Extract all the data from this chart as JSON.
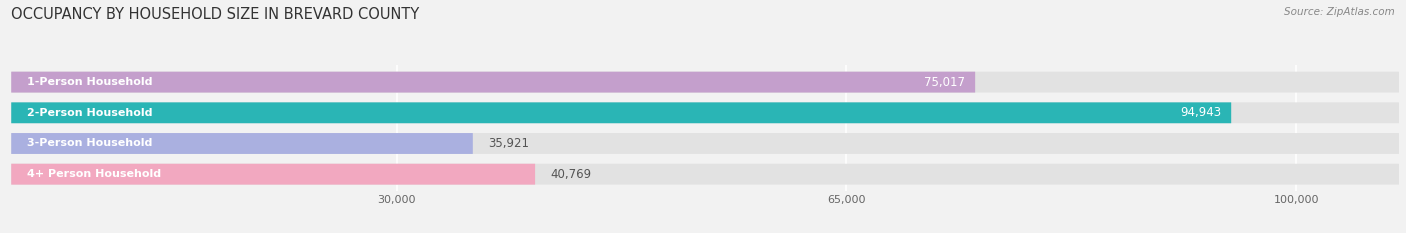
{
  "title": "OCCUPANCY BY HOUSEHOLD SIZE IN BREVARD COUNTY",
  "source": "Source: ZipAtlas.com",
  "categories": [
    "1-Person Household",
    "2-Person Household",
    "3-Person Household",
    "4+ Person Household"
  ],
  "values": [
    75017,
    94943,
    35921,
    40769
  ],
  "bar_colors": [
    "#c49fcc",
    "#2ab5b5",
    "#aab0e0",
    "#f2a8c0"
  ],
  "background_color": "#f2f2f2",
  "bar_background_color": "#e2e2e2",
  "xlim": [
    0,
    108000
  ],
  "xticks": [
    30000,
    65000,
    100000
  ],
  "xtick_labels": [
    "30,000",
    "65,000",
    "100,000"
  ],
  "title_fontsize": 10.5,
  "bar_label_fontsize": 8.5,
  "category_fontsize": 8,
  "bar_height": 0.68,
  "value_label_outside_color": "#555555"
}
